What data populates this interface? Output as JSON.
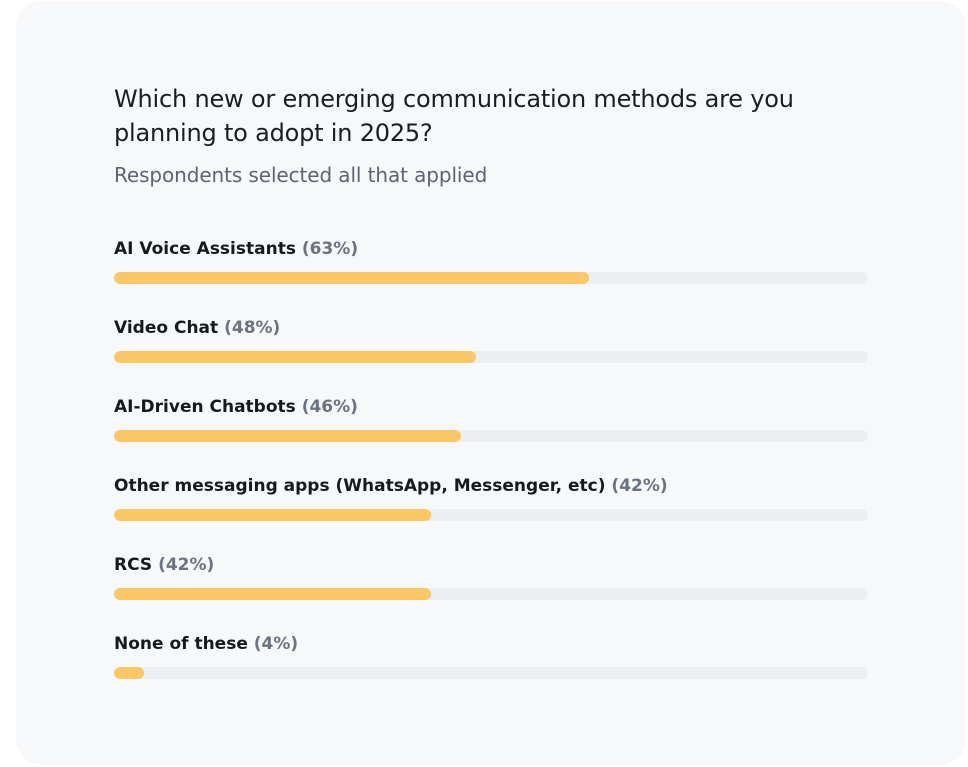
{
  "card": {
    "title": "Which new or emerging communication methods are you planning to adopt in 2025?",
    "subtitle": "Respondents selected all that applied"
  },
  "colors": {
    "bar_fill": "#fcc865",
    "bar_track": "#eceef1",
    "card_background": "#f7f8fa"
  },
  "chart_data": {
    "type": "bar",
    "orientation": "horizontal",
    "title": "Which new or emerging communication methods are you planning to adopt in 2025?",
    "subtitle": "Respondents selected all that applied",
    "xlim": [
      0,
      100
    ],
    "grid": false,
    "categories": [
      "AI Voice Assistants",
      "Video Chat",
      "AI-Driven Chatbots",
      "Other messaging apps (WhatsApp, Messenger, etc)",
      "RCS",
      "None of these"
    ],
    "values": [
      63,
      48,
      46,
      42,
      42,
      4
    ],
    "value_labels": [
      "(63%)",
      "(48%)",
      "(46%)",
      "(42%)",
      "(42%)",
      "(4%)"
    ]
  }
}
